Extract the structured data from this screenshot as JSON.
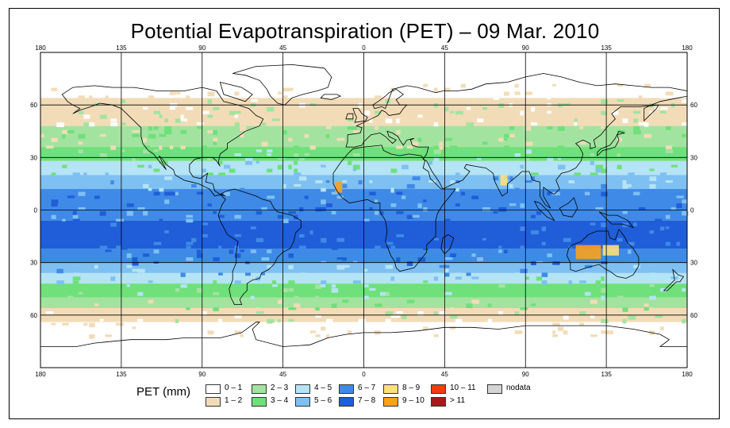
{
  "chart_data": {
    "type": "heatmap",
    "title": "Potential Evapotranspiration (PET) – 09 Mar. 2010",
    "projection": "equirectangular",
    "x_ticks": [
      -180,
      -135,
      -90,
      -45,
      0,
      45,
      90,
      135,
      180
    ],
    "x_tick_labels": [
      "180",
      "135",
      "90",
      "45",
      "0",
      "45",
      "90",
      "135",
      "180"
    ],
    "y_ticks": [
      60,
      30,
      0,
      -30,
      -60
    ],
    "y_tick_labels": [
      "60",
      "30",
      "0",
      "30",
      "60"
    ],
    "lon_range": [
      -180,
      180
    ],
    "lat_range": [
      -90,
      90
    ],
    "grid": true,
    "legend": {
      "title": "PET (mm)",
      "position": "bottom",
      "classes": [
        {
          "label": "0 – 1",
          "color": "#ffffff"
        },
        {
          "label": "1 – 2",
          "color": "#f2dcb8"
        },
        {
          "label": "2 – 3",
          "color": "#a3e3a0"
        },
        {
          "label": "3 – 4",
          "color": "#6fe07a"
        },
        {
          "label": "4 – 5",
          "color": "#b4e4f5"
        },
        {
          "label": "5 – 6",
          "color": "#7ec0f2"
        },
        {
          "label": "6 – 7",
          "color": "#3f8ae6"
        },
        {
          "label": "7 – 8",
          "color": "#1f5ed8"
        },
        {
          "label": "8 – 9",
          "color": "#fde07a"
        },
        {
          "label": "9 – 10",
          "color": "#f9a21c"
        },
        {
          "label": "10 – 11",
          "color": "#f03c10"
        },
        {
          "label": "> 11",
          "color": "#a31b1b"
        },
        {
          "label": "nodata",
          "color": "#d4d4d4"
        }
      ]
    },
    "zonal_bands": [
      {
        "lat": [
          64,
          90
        ],
        "class": 0
      },
      {
        "lat": [
          48,
          64
        ],
        "class": 1
      },
      {
        "lat": [
          36,
          48
        ],
        "class": 2
      },
      {
        "lat": [
          28,
          36
        ],
        "class": 3
      },
      {
        "lat": [
          20,
          28
        ],
        "class": 4
      },
      {
        "lat": [
          12,
          20
        ],
        "class": 5
      },
      {
        "lat": [
          -6,
          12
        ],
        "class": 6
      },
      {
        "lat": [
          -22,
          -6
        ],
        "class": 7
      },
      {
        "lat": [
          -30,
          -22
        ],
        "class": 6
      },
      {
        "lat": [
          -36,
          -30
        ],
        "class": 5
      },
      {
        "lat": [
          -42,
          -36
        ],
        "class": 4
      },
      {
        "lat": [
          -50,
          -42
        ],
        "class": 3
      },
      {
        "lat": [
          -56,
          -50
        ],
        "class": 2
      },
      {
        "lat": [
          -64,
          -56
        ],
        "class": 1
      },
      {
        "lat": [
          -90,
          -64
        ],
        "class": 0
      }
    ],
    "hotspots": [
      {
        "region": "western Australia",
        "lon": [
          118,
          132
        ],
        "lat": [
          -28,
          -20
        ],
        "class": 9
      },
      {
        "region": "central Australia",
        "lon": [
          133,
          142
        ],
        "lat": [
          -26,
          -20
        ],
        "class": 8
      },
      {
        "region": "west Africa",
        "lon": [
          -16,
          -12
        ],
        "lat": [
          10,
          16
        ],
        "class": 9
      },
      {
        "region": "India",
        "lon": [
          76,
          80
        ],
        "lat": [
          14,
          20
        ],
        "class": 8
      }
    ],
    "continent_outlines": true
  }
}
